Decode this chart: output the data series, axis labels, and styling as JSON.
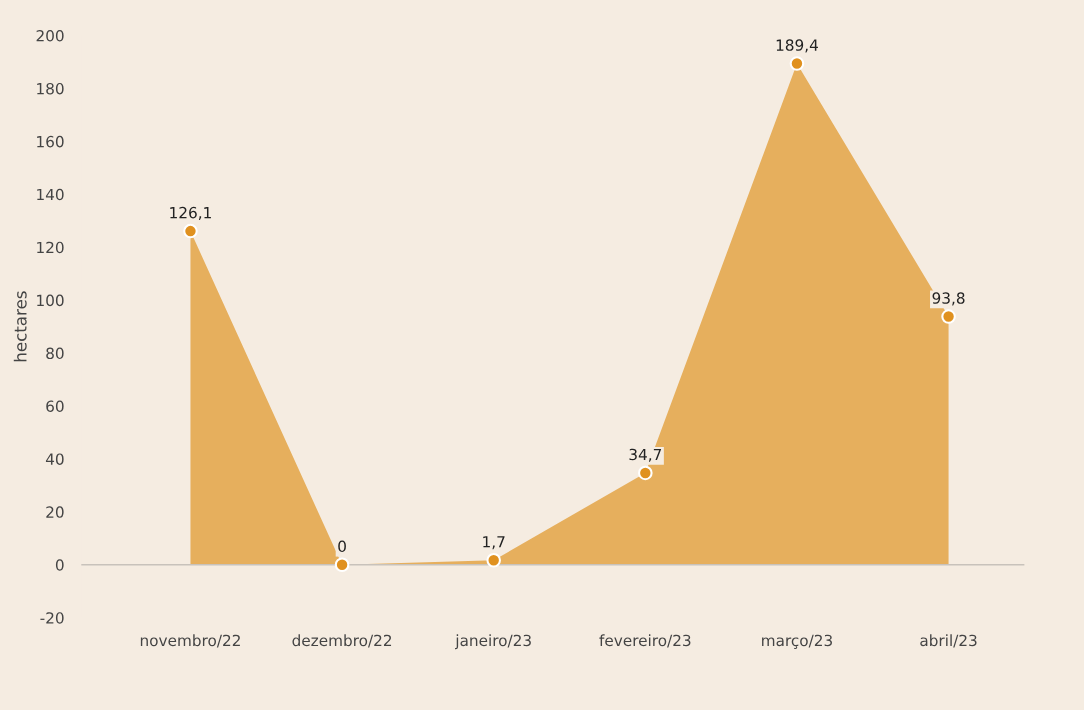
{
  "chart_data": {
    "type": "area",
    "ylabel": "hectares",
    "categories": [
      "novembro/22",
      "dezembro/22",
      "janeiro/23",
      "fevereiro/23",
      "março/23",
      "abril/23"
    ],
    "series": [
      {
        "color": "#e6af5d",
        "colors": [
          "#e0911f",
          "#e0911f",
          "#e0911f",
          "#e0911f",
          "#e0911f",
          "#e0911f"
        ],
        "values": [
          126.1,
          0,
          1.7,
          34.7,
          189.4,
          93.8
        ],
        "value_labels": [
          "126,1",
          "0",
          "1,7",
          "34,7",
          "189,4",
          "93,8"
        ]
      }
    ],
    "marker": "circle",
    "ylim": [
      -20,
      200
    ],
    "yticks": [
      -20,
      0,
      20,
      40,
      60,
      80,
      100,
      120,
      140,
      160,
      180,
      200
    ],
    "ref_lines": [
      {
        "axis": "y",
        "value": 0,
        "color": "#c8c2bb"
      }
    ],
    "grid": false
  }
}
